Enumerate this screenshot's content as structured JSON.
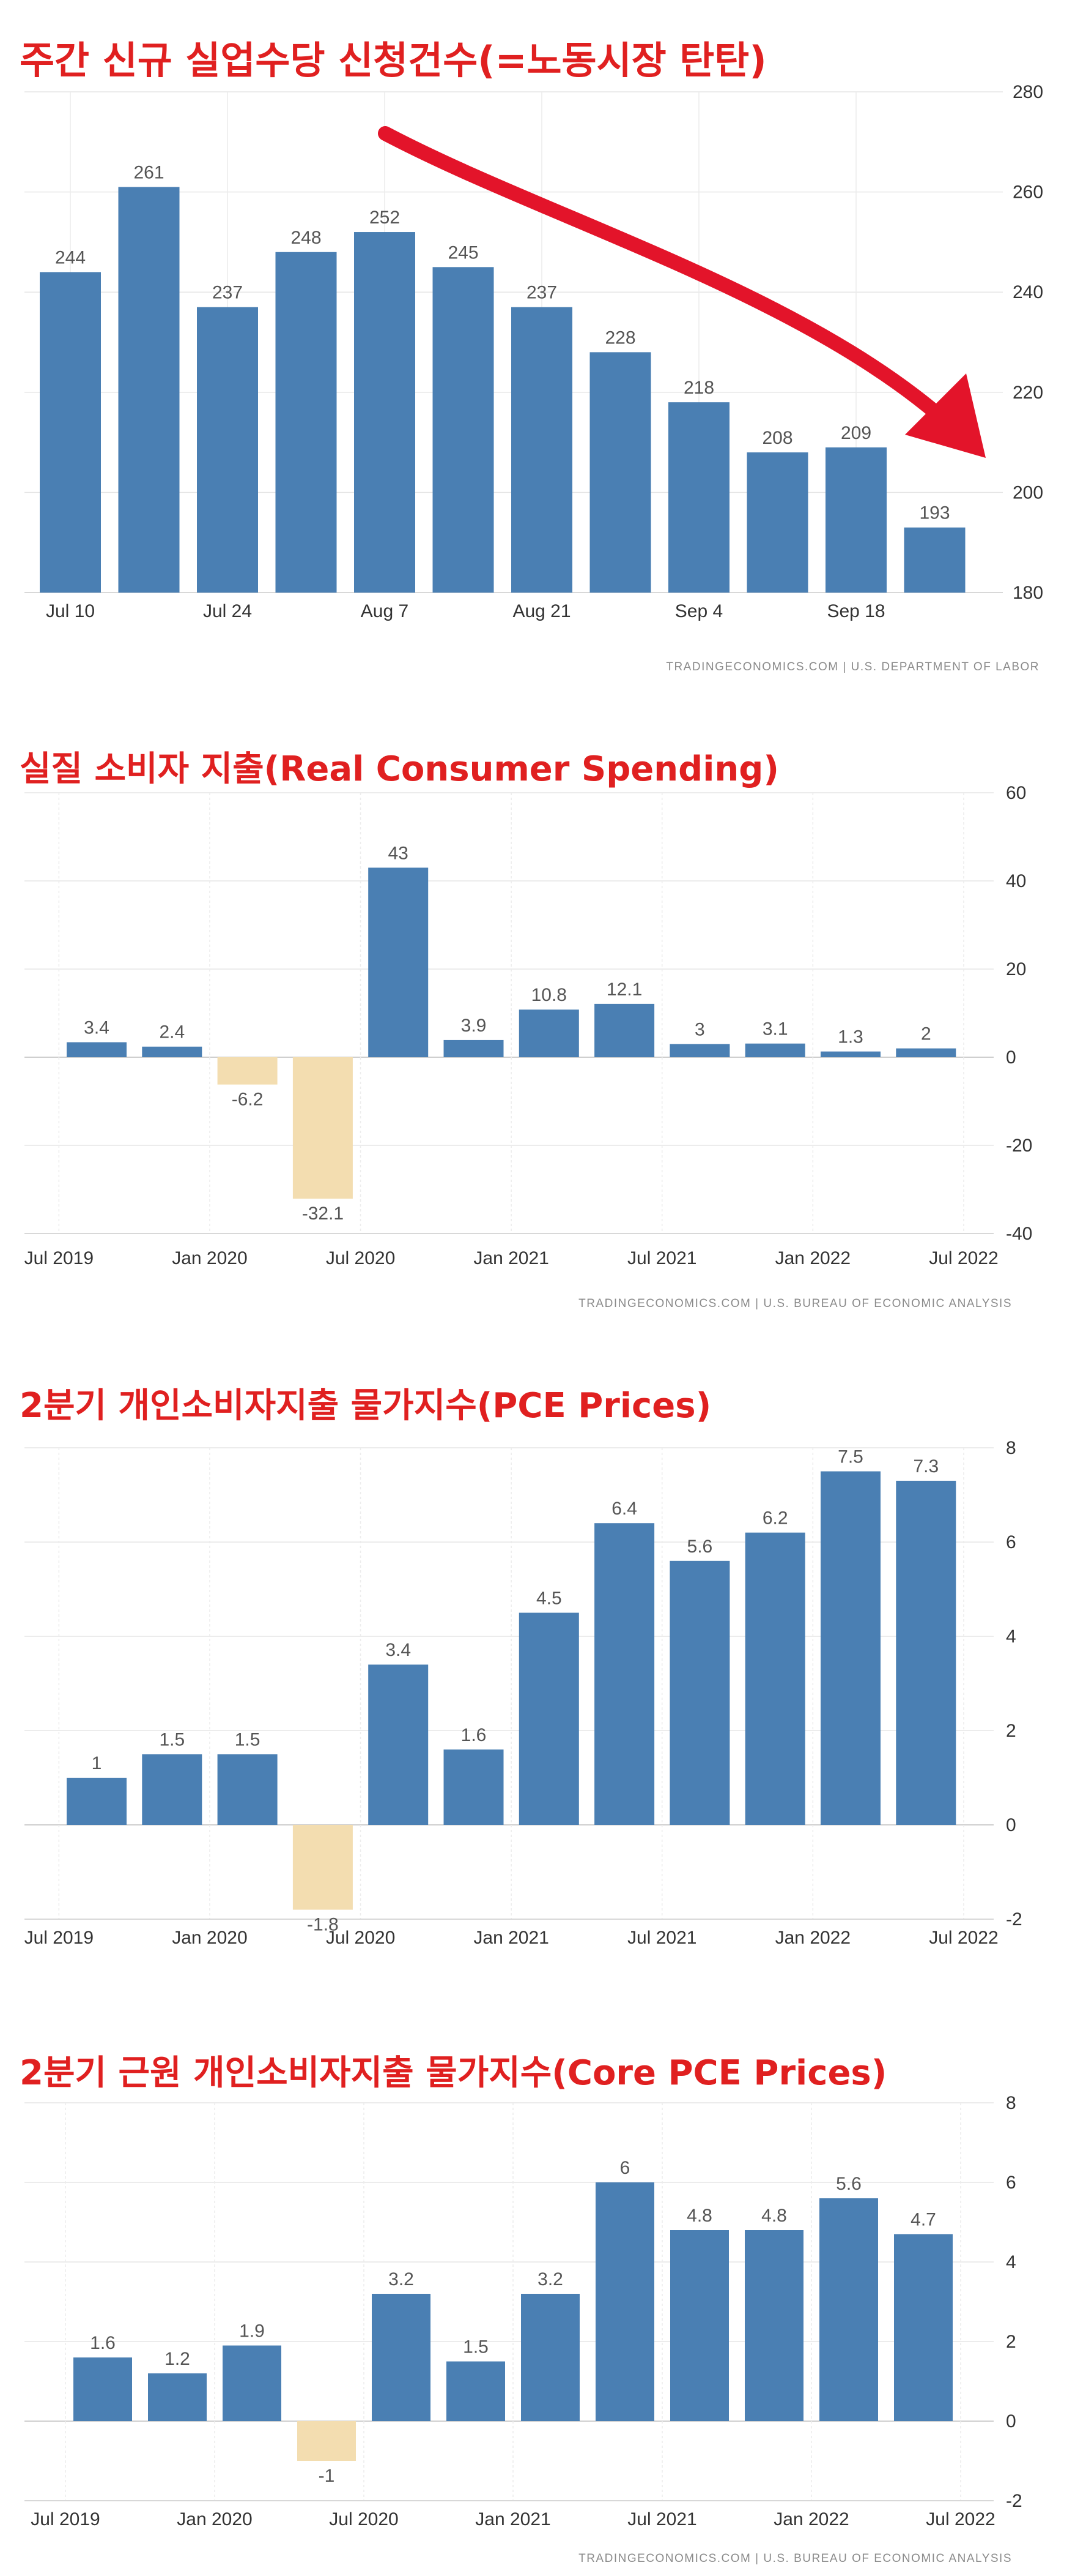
{
  "charts": [
    {
      "type": "bar",
      "title": "주간 신규 실업수당 신청건수(=노동시장 탄탄)",
      "source": "TRADINGECONOMICS.COM  |  U.S. DEPARTMENT OF LABOR",
      "xtick_labels": [
        "Jul 10",
        "Jul 24",
        "Aug 7",
        "Aug 21",
        "Sep 4",
        "Sep 18"
      ],
      "yticks": [
        180,
        200,
        220,
        240,
        260,
        280
      ],
      "ylim": [
        180,
        280
      ],
      "values": [
        244,
        261,
        237,
        248,
        252,
        245,
        237,
        228,
        218,
        208,
        209,
        193
      ],
      "grid": true,
      "annotation": "red-downward-arrow",
      "colors": {
        "positive": "#4a7fb3",
        "negative": "#f3ddb0",
        "arrow": "#e3142a",
        "title": "#e02020"
      }
    },
    {
      "type": "bar",
      "title": "실질 소비자 지출(Real Consumer Spending)",
      "source": "TRADINGECONOMICS.COM  |  U.S. BUREAU OF ECONOMIC ANALYSIS",
      "xtick_labels": [
        "Jul 2019",
        "Jan 2020",
        "Jul 2020",
        "Jan 2021",
        "Jul 2021",
        "Jan 2022",
        "Jul 2022"
      ],
      "yticks": [
        -40,
        -20,
        0,
        20,
        40,
        60
      ],
      "ylim": [
        -40,
        60
      ],
      "values": [
        3.4,
        2.4,
        -6.2,
        -32.1,
        43,
        3.9,
        10.8,
        12.1,
        3,
        3.1,
        1.3,
        2
      ],
      "grid": true,
      "colors": {
        "positive": "#4a7fb3",
        "negative": "#f3ddb0",
        "title": "#e02020"
      }
    },
    {
      "type": "bar",
      "title": "2분기 개인소비자지출 물가지수(PCE Prices)",
      "source": "",
      "xtick_labels": [
        "Jul 2019",
        "Jan 2020",
        "Jul 2020",
        "Jan 2021",
        "Jul 2021",
        "Jan 2022",
        "Jul 2022"
      ],
      "yticks": [
        -2,
        0,
        2,
        4,
        6,
        8
      ],
      "ylim": [
        -2,
        8
      ],
      "values": [
        1,
        1.5,
        1.5,
        -1.8,
        3.4,
        1.6,
        4.5,
        6.4,
        5.6,
        6.2,
        7.5,
        7.3
      ],
      "grid": true,
      "colors": {
        "positive": "#4a7fb3",
        "negative": "#f3ddb0",
        "title": "#e02020"
      }
    },
    {
      "type": "bar",
      "title": "2분기 근원 개인소비자지출 물가지수(Core PCE Prices)",
      "source": "TRADINGECONOMICS.COM  |  U.S. BUREAU OF ECONOMIC ANALYSIS",
      "xtick_labels": [
        "Jul 2019",
        "Jan 2020",
        "Jul 2020",
        "Jan 2021",
        "Jul 2021",
        "Jan 2022",
        "Jul 2022"
      ],
      "yticks": [
        -2,
        0,
        2,
        4,
        6,
        8
      ],
      "ylim": [
        -2,
        8
      ],
      "values": [
        1.6,
        1.2,
        1.9,
        -1,
        3.2,
        1.5,
        3.2,
        6,
        4.8,
        4.8,
        5.6,
        4.7
      ],
      "grid": true,
      "colors": {
        "positive": "#4a7fb3",
        "negative": "#f3ddb0",
        "title": "#e02020"
      }
    }
  ]
}
